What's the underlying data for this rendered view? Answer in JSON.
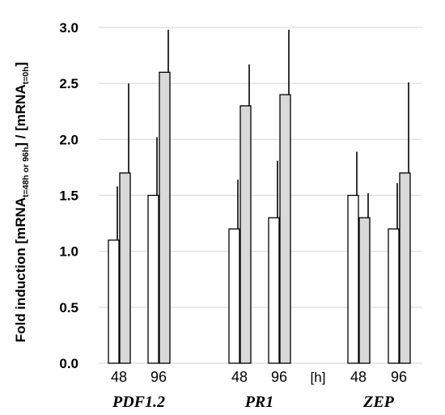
{
  "chart_data": {
    "type": "bar",
    "ylabel": {
      "prefix": "Fold induction [mRNA",
      "sub1": "t=48h or 96h",
      "middle": "] / [mRNA",
      "sub2": "t=0h",
      "suffix": "]"
    },
    "ylim": [
      0,
      3.0
    ],
    "yticks": [
      "0.0",
      "0.5",
      "1.0",
      "1.5",
      "2.0",
      "2.5",
      "3.0"
    ],
    "grid": true,
    "unit_label": "[h]",
    "colors": {
      "white_bar": "#ffffff",
      "gray_bar": "#d9d9d9",
      "grid": "#d9d9d9",
      "stroke": "#000000"
    },
    "genes": [
      {
        "name": "PDF1.2",
        "timepoints": [
          {
            "label": "48",
            "values": [
              1.1,
              1.7
            ],
            "errors": [
              0.48,
              0.8
            ]
          },
          {
            "label": "96",
            "values": [
              1.5,
              2.6
            ],
            "errors": [
              0.52,
              0.38
            ]
          }
        ]
      },
      {
        "name": "PR1",
        "timepoints": [
          {
            "label": "48",
            "values": [
              1.2,
              2.3
            ],
            "errors": [
              0.44,
              0.37
            ]
          },
          {
            "label": "96",
            "values": [
              1.3,
              2.4
            ],
            "errors": [
              0.51,
              0.58
            ]
          }
        ]
      },
      {
        "name": "ZEP",
        "timepoints": [
          {
            "label": "48",
            "values": [
              1.5,
              1.3
            ],
            "errors": [
              0.39,
              0.22
            ]
          },
          {
            "label": "96",
            "values": [
              1.2,
              1.7
            ],
            "errors": [
              0.41,
              0.81
            ]
          }
        ]
      }
    ]
  }
}
